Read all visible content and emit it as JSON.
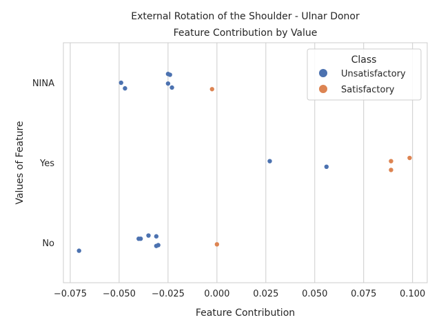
{
  "chart_data": {
    "type": "scatter",
    "title_lines": [
      "External Rotation of the Shoulder - Ulnar Donor",
      "Feature Contribution by Value"
    ],
    "xlabel": "Feature Contribution",
    "ylabel": "Values of Feature",
    "xlim": [
      -0.0785,
      0.1075
    ],
    "x_ticks": [
      -0.075,
      -0.05,
      -0.025,
      0.0,
      0.025,
      0.05,
      0.075,
      0.1
    ],
    "x_tick_labels": [
      "−0.075",
      "−0.050",
      "−0.025",
      "0.000",
      "0.025",
      "0.050",
      "0.075",
      "0.100"
    ],
    "categories": [
      "NINA",
      "Yes",
      "No"
    ],
    "grid": true,
    "legend": {
      "title": "Class",
      "placement": "top-right",
      "entries": [
        {
          "label": "Unsatisfactory",
          "color": "#4c72b0"
        },
        {
          "label": "Satisfactory",
          "color": "#dd8452"
        }
      ]
    },
    "series": [
      {
        "name": "Unsatisfactory",
        "color": "#4c72b0",
        "points": [
          {
            "cat": "NINA",
            "x": -0.025,
            "jitter": -0.11
          },
          {
            "cat": "NINA",
            "x": -0.024,
            "jitter": -0.1
          },
          {
            "cat": "NINA",
            "x": -0.049,
            "jitter": 0.0
          },
          {
            "cat": "NINA",
            "x": -0.025,
            "jitter": 0.01
          },
          {
            "cat": "NINA",
            "x": -0.047,
            "jitter": 0.07
          },
          {
            "cat": "NINA",
            "x": -0.023,
            "jitter": 0.06
          },
          {
            "cat": "Yes",
            "x": 0.027,
            "jitter": -0.02
          },
          {
            "cat": "Yes",
            "x": 0.056,
            "jitter": 0.05
          },
          {
            "cat": "No",
            "x": -0.0705,
            "jitter": 0.1
          },
          {
            "cat": "No",
            "x": -0.031,
            "jitter": 0.04
          },
          {
            "cat": "No",
            "x": -0.03,
            "jitter": 0.03
          },
          {
            "cat": "No",
            "x": -0.04,
            "jitter": -0.05
          },
          {
            "cat": "No",
            "x": -0.039,
            "jitter": -0.05
          },
          {
            "cat": "No",
            "x": -0.035,
            "jitter": -0.09
          },
          {
            "cat": "No",
            "x": -0.031,
            "jitter": -0.08
          }
        ]
      },
      {
        "name": "Satisfactory",
        "color": "#dd8452",
        "points": [
          {
            "cat": "NINA",
            "x": -0.0025,
            "jitter": 0.08
          },
          {
            "cat": "Yes",
            "x": 0.089,
            "jitter": 0.09
          },
          {
            "cat": "Yes",
            "x": 0.089,
            "jitter": -0.02
          },
          {
            "cat": "Yes",
            "x": 0.0985,
            "jitter": -0.06
          },
          {
            "cat": "No",
            "x": 0.0,
            "jitter": 0.02
          }
        ]
      }
    ]
  }
}
